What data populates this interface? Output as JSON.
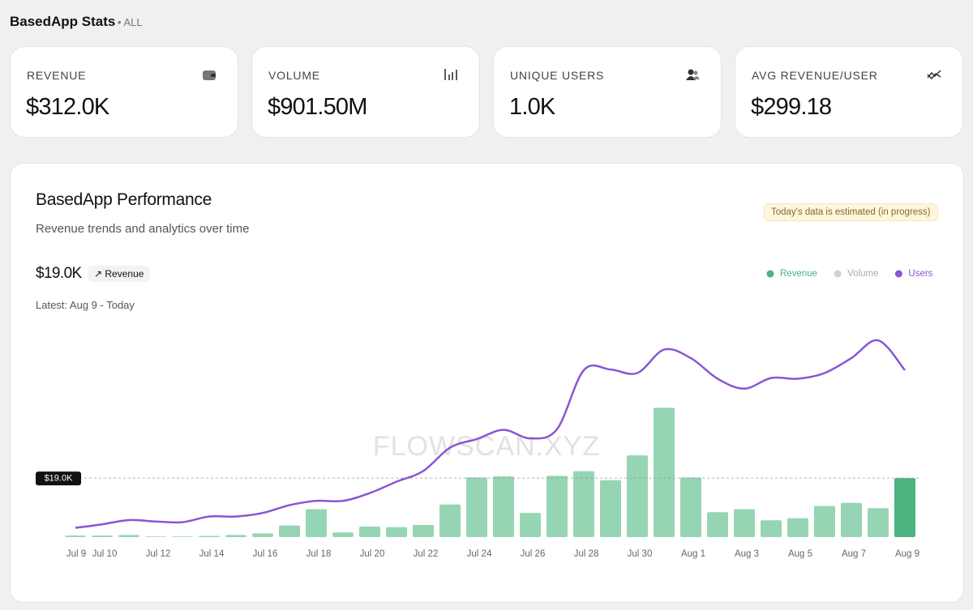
{
  "header": {
    "title": "BasedApp Stats",
    "scope": "ALL"
  },
  "stats": [
    {
      "label": "REVENUE",
      "value": "$312.0K"
    },
    {
      "label": "VOLUME",
      "value": "$901.50M"
    },
    {
      "label": "UNIQUE USERS",
      "value": "1.0K"
    },
    {
      "label": "AVG REVENUE/USER",
      "value": "$299.18"
    }
  ],
  "panel": {
    "title": "BasedApp Performance",
    "subtitle": "Revenue trends and analytics over time",
    "notice": "Today's data is estimated (in progress)",
    "current_value": "$19.0K",
    "metric": "Revenue",
    "latest": "Latest: Aug 9 - Today",
    "watermark": "FLOWSCAN.XYZ",
    "reference_label": "$19.0K"
  },
  "chart_data": {
    "type": "bar_line",
    "categories": [
      "Jul 9",
      "Jul 10",
      null,
      "Jul 12",
      null,
      "Jul 14",
      null,
      "Jul 16",
      null,
      "Jul 18",
      null,
      "Jul 20",
      null,
      "Jul 22",
      null,
      "Jul 24",
      null,
      "Jul 26",
      null,
      "Jul 28",
      null,
      "Jul 30",
      null,
      "Aug 1",
      null,
      "Aug 3",
      null,
      "Aug 5",
      null,
      "Aug 7",
      null,
      "Aug 9"
    ],
    "legend": [
      {
        "name": "Revenue",
        "color": "#4cb381"
      },
      {
        "name": "Volume",
        "color": "#d0d3d6"
      },
      {
        "name": "Users",
        "color": "#8a55d6"
      }
    ],
    "series": [
      {
        "name": "Revenue",
        "color": "#95d5b4",
        "highlight_color": "#4cb381",
        "values": [
          500,
          500,
          700,
          200,
          200,
          400,
          700,
          1200,
          3700,
          9000,
          1500,
          3400,
          3200,
          3900,
          10500,
          19200,
          19500,
          7800,
          19700,
          21200,
          18300,
          26300,
          41600,
          19200,
          8000,
          9000,
          5400,
          6100,
          10000,
          11000,
          9300,
          19000
        ]
      },
      {
        "name": "Users",
        "color": "#8a55d6",
        "axis": "y2",
        "values": [
          13,
          18,
          24,
          22,
          21,
          29,
          29,
          34,
          45,
          51,
          51,
          62,
          78,
          93,
          126,
          138,
          151,
          139,
          152,
          235,
          236,
          231,
          264,
          252,
          223,
          209,
          224,
          223,
          231,
          252,
          277,
          235
        ]
      }
    ],
    "ylim": [
      0,
      80000
    ],
    "y2lim": [
      0,
      300
    ]
  }
}
